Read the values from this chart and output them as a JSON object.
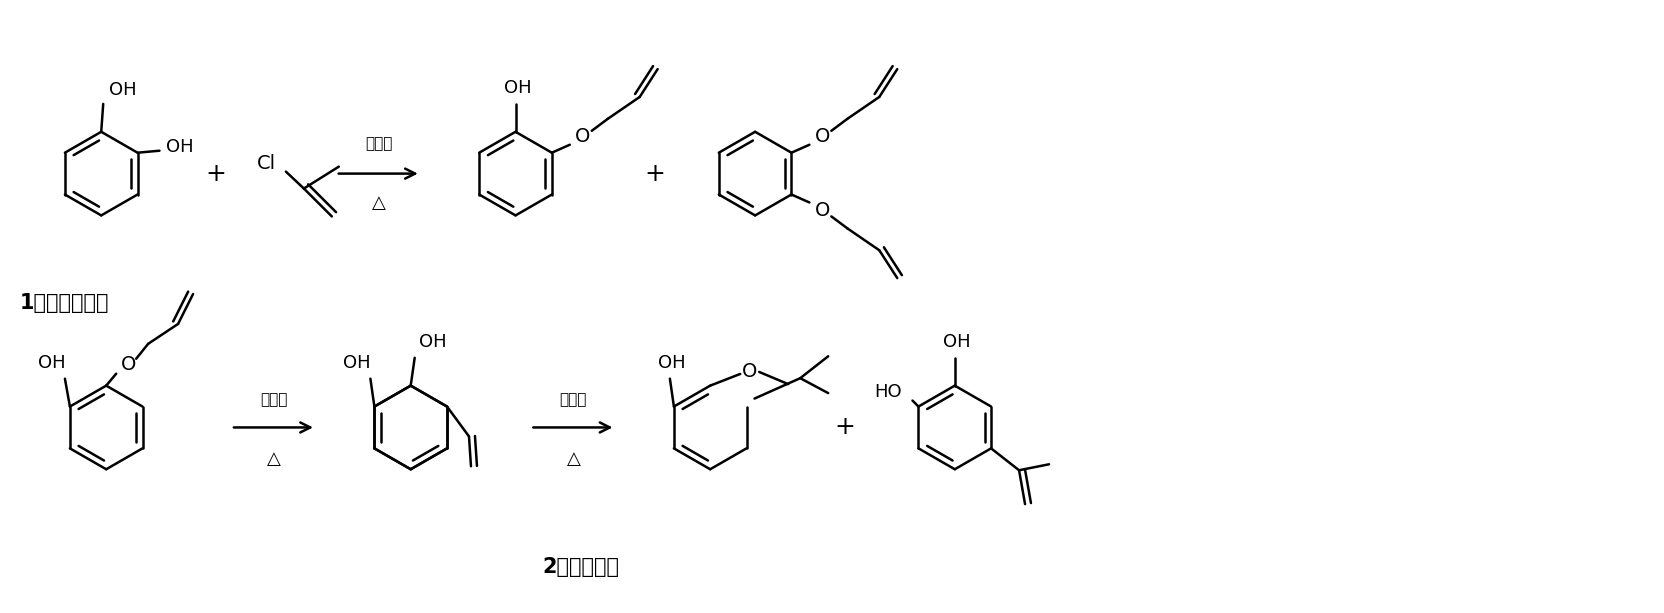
{
  "bg_color": "#ffffff",
  "text_color": "#000000",
  "figsize": [
    16.64,
    6.13
  ],
  "dpi": 100,
  "label_1": "1（邻苯二酚）",
  "label_2": "2（咉喂酚）",
  "cond1_top": "缚酸剂",
  "cond2_top": "催化剂",
  "cond3_top": "催化剂",
  "delta": "△",
  "lw": 1.8,
  "font_chem": 12,
  "font_label": 14,
  "font_cond": 11
}
